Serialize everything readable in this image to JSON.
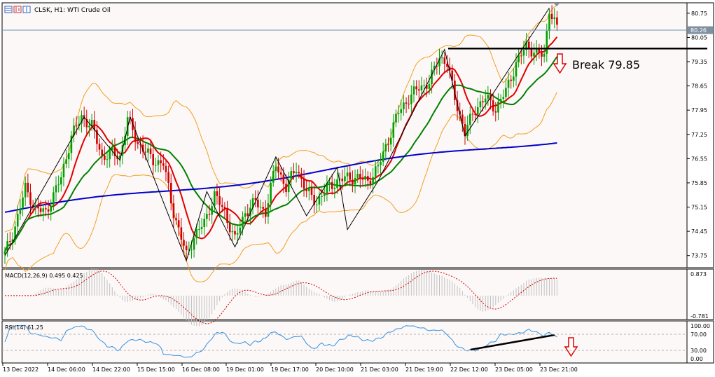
{
  "header": {
    "title": "CLSK, H1:  WTI Crude Oil"
  },
  "price_axis": {
    "ticks": [
      "80.75",
      "80.05",
      "79.35",
      "78.65",
      "77.95",
      "77.25",
      "76.55",
      "75.85",
      "75.15",
      "74.45",
      "73.75"
    ],
    "current_price": "80.26"
  },
  "macd": {
    "label": "MACD(12,26,9) 0.495 0.425",
    "axis_top": "0.873",
    "axis_bottom": "-0.781"
  },
  "rsi": {
    "label": "RSI(14) 61.25",
    "ticks": [
      "100.00",
      "70.00",
      "30.00",
      "0.00"
    ]
  },
  "time_axis": {
    "labels": [
      "13 Dec 2022",
      "14 Dec 06:00",
      "14 Dec 22:00",
      "15 Dec 15:00",
      "16 Dec 08:00",
      "19 Dec 01:00",
      "19 Dec 17:00",
      "20 Dec 10:00",
      "21 Dec 03:00",
      "21 Dec 19:00",
      "22 Dec 12:00",
      "23 Dec 05:00",
      "23 Dec 21:00"
    ]
  },
  "annotation": {
    "break_label": "Break 79.85"
  },
  "colors": {
    "background": "#ffffff",
    "plot_bg": "#fdf8f8",
    "candle_bull": "#00a000",
    "candle_bear": "#d00000",
    "ma_fast": "#e00000",
    "ma_mid": "#008000",
    "ma_slow": "#0000cc",
    "bollinger": "#f0a020",
    "zigzag": "#000000",
    "macd_signal": "#d00000",
    "macd_hist": "#c0c0c0",
    "rsi_line": "#3090e0",
    "arrow": "#e00000"
  },
  "chart_data": {
    "type": "candlestick",
    "symbol": "CLSK",
    "timeframe": "H1",
    "ylim": [
      73.4,
      81.05
    ],
    "resistance_level": 79.85,
    "indicators": [
      "Bollinger Bands",
      "Moving Average (fast)",
      "Moving Average (mid)",
      "Moving Average (slow)",
      "ZigZag",
      "MACD(12,26,9)",
      "RSI(14)"
    ],
    "close_path": [
      {
        "t": 0,
        "p": 73.8
      },
      {
        "t": 4,
        "p": 74.6
      },
      {
        "t": 8,
        "p": 75.7
      },
      {
        "t": 12,
        "p": 75.1
      },
      {
        "t": 16,
        "p": 75.0
      },
      {
        "t": 22,
        "p": 76.0
      },
      {
        "t": 26,
        "p": 77.2
      },
      {
        "t": 30,
        "p": 77.75
      },
      {
        "t": 34,
        "p": 77.5
      },
      {
        "t": 38,
        "p": 76.6
      },
      {
        "t": 42,
        "p": 76.7
      },
      {
        "t": 45,
        "p": 76.6
      },
      {
        "t": 48,
        "p": 77.7
      },
      {
        "t": 52,
        "p": 77.0
      },
      {
        "t": 58,
        "p": 76.5
      },
      {
        "t": 62,
        "p": 76.4
      },
      {
        "t": 66,
        "p": 75.0
      },
      {
        "t": 71,
        "p": 73.75
      },
      {
        "t": 74,
        "p": 74.3
      },
      {
        "t": 78,
        "p": 74.7
      },
      {
        "t": 82,
        "p": 75.5
      },
      {
        "t": 86,
        "p": 75.0
      },
      {
        "t": 90,
        "p": 74.2
      },
      {
        "t": 94,
        "p": 75.0
      },
      {
        "t": 98,
        "p": 75.3
      },
      {
        "t": 102,
        "p": 75.0
      },
      {
        "t": 106,
        "p": 76.4
      },
      {
        "t": 110,
        "p": 75.7
      },
      {
        "t": 114,
        "p": 76.3
      },
      {
        "t": 118,
        "p": 75.6
      },
      {
        "t": 122,
        "p": 75.3
      },
      {
        "t": 126,
        "p": 75.7
      },
      {
        "t": 130,
        "p": 75.9
      },
      {
        "t": 134,
        "p": 76.0
      },
      {
        "t": 138,
        "p": 76.0
      },
      {
        "t": 142,
        "p": 75.9
      },
      {
        "t": 146,
        "p": 76.3
      },
      {
        "t": 150,
        "p": 77.1
      },
      {
        "t": 154,
        "p": 77.9
      },
      {
        "t": 158,
        "p": 78.3
      },
      {
        "t": 162,
        "p": 78.6
      },
      {
        "t": 166,
        "p": 78.75
      },
      {
        "t": 170,
        "p": 79.5
      },
      {
        "t": 173,
        "p": 79.3
      },
      {
        "t": 176,
        "p": 78.3
      },
      {
        "t": 180,
        "p": 77.3
      },
      {
        "t": 184,
        "p": 78.0
      },
      {
        "t": 188,
        "p": 78.3
      },
      {
        "t": 192,
        "p": 78.0
      },
      {
        "t": 196,
        "p": 78.5
      },
      {
        "t": 200,
        "p": 79.3
      },
      {
        "t": 204,
        "p": 79.8
      },
      {
        "t": 208,
        "p": 79.6
      },
      {
        "t": 211,
        "p": 79.5
      },
      {
        "t": 213,
        "p": 80.9
      },
      {
        "t": 216,
        "p": 80.3
      }
    ]
  }
}
